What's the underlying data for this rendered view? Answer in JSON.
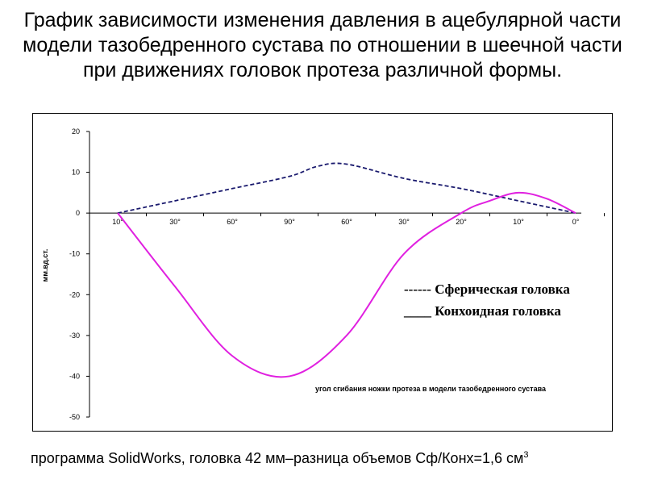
{
  "title": "График зависимости изменения давления в ацебулярной части модели тазобедренного сустава по отношении в шеечной части при движениях головок протеза различной формы.",
  "note": {
    "text": "программа SolidWorks, головка 42 мм–разница объемов Сф/Конх=1,6 см",
    "sup": "3"
  },
  "colors": {
    "spherical": "#1a1a6e",
    "conchoid": "#e020e0",
    "axis": "#000000"
  },
  "chart_data": {
    "type": "line",
    "categories": [
      "10°",
      "30°",
      "60°",
      "90°",
      "60°",
      "30°",
      "20°",
      "10°",
      "0°"
    ],
    "ylabel": "мм.вд.ст.",
    "xlabel": "угол сгибания ножки протеза в модели тазобедренного сустава",
    "ylim": [
      -50,
      20
    ],
    "yticks": [
      20,
      10,
      0,
      -10,
      -20,
      -30,
      -40,
      -50
    ],
    "grid": false,
    "legend_placement": "right",
    "series": [
      {
        "name": "Сферическая головка",
        "legend_label": "------ Сферическая головка",
        "style": "dashed",
        "x": [
          0,
          1,
          2,
          3,
          3.5,
          4,
          5,
          6,
          7,
          8
        ],
        "values": [
          0,
          3,
          6,
          9,
          11.5,
          12,
          8.5,
          6,
          3,
          0
        ]
      },
      {
        "name": "Конхоидная головка",
        "legend_label": "____ Конхоидная головка",
        "style": "solid",
        "x": [
          0,
          1,
          2,
          3,
          4,
          5,
          6,
          6.5,
          7,
          7.5,
          8
        ],
        "values": [
          0,
          -18,
          -35,
          -40,
          -30,
          -10,
          0,
          3,
          5,
          3.5,
          0
        ]
      }
    ]
  }
}
